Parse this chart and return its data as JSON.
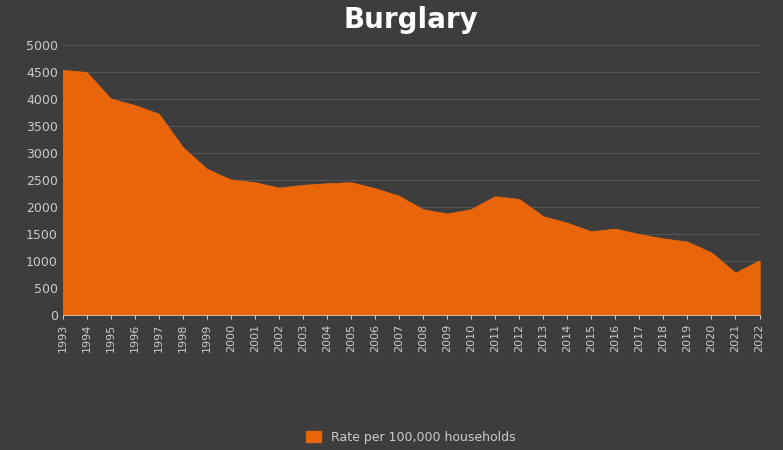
{
  "years": [
    1993,
    1994,
    1995,
    1996,
    1997,
    1998,
    1999,
    2000,
    2001,
    2002,
    2003,
    2004,
    2005,
    2006,
    2007,
    2008,
    2009,
    2010,
    2011,
    2012,
    2013,
    2014,
    2015,
    2016,
    2017,
    2018,
    2019,
    2020,
    2021,
    2022
  ],
  "values": [
    4530,
    4490,
    4000,
    3880,
    3720,
    3100,
    2700,
    2500,
    2450,
    2350,
    2400,
    2430,
    2450,
    2340,
    2200,
    1950,
    1870,
    1950,
    2190,
    2140,
    1820,
    1700,
    1540,
    1590,
    1490,
    1410,
    1350,
    1150,
    775,
    1000
  ],
  "area_color": "#E8650A",
  "background_color": "#3d3d3d",
  "plot_background_color": "#3d3d3d",
  "title": "Burglary",
  "title_color": "white",
  "title_fontsize": 20,
  "title_fontweight": "bold",
  "tick_color": "#cccccc",
  "grid_color": "#5a5a5a",
  "legend_label": "Rate per 100,000 households",
  "ylim": [
    0,
    5000
  ],
  "yticks": [
    0,
    500,
    1000,
    1500,
    2000,
    2500,
    3000,
    3500,
    4000,
    4500,
    5000
  ],
  "legend_facecolor": "#3d3d3d",
  "legend_edgecolor": "#3d3d3d",
  "spine_color": "#cccccc",
  "figsize": [
    7.83,
    4.5
  ],
  "dpi": 100
}
